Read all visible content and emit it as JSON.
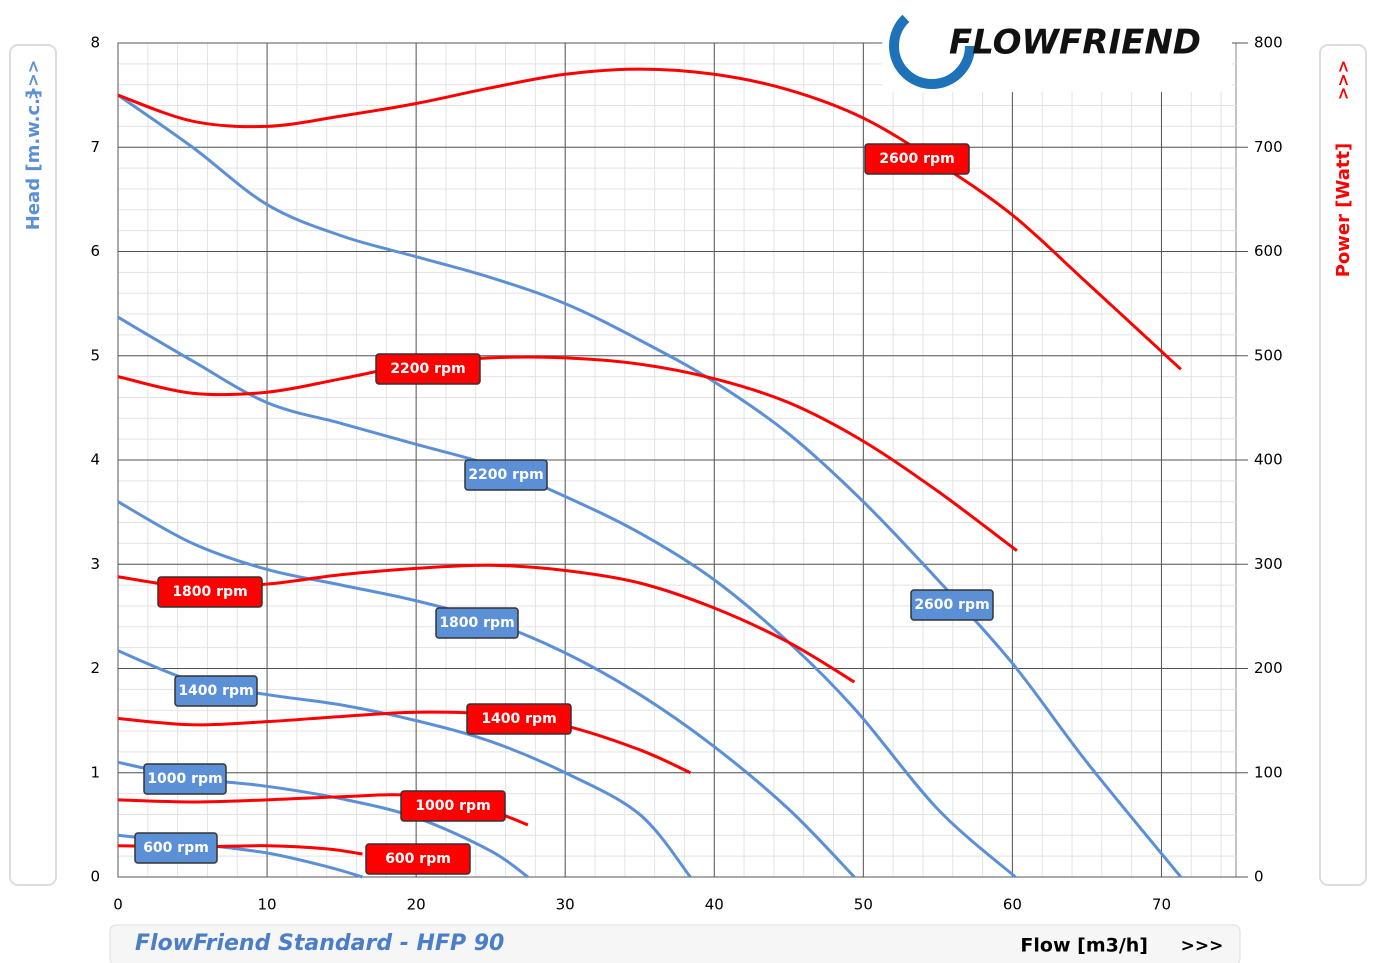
{
  "chart_data": {
    "type": "line",
    "logo": "FLOWFRIEND",
    "title": "FlowFriend Standard - HFP 90",
    "xlabel": "Flow [m3/h]",
    "xarrow": ">>>",
    "ylabel": "Head [m.w.c.]",
    "yarrow": ">>>",
    "y2label": "Power [Watt]",
    "y2arrow": ">>>",
    "xlim": [
      0,
      75
    ],
    "xticks": [
      0,
      10,
      20,
      30,
      40,
      50,
      60,
      70
    ],
    "xminor": 2,
    "ylim": [
      0,
      8
    ],
    "yticks": [
      0,
      1,
      2,
      3,
      4,
      5,
      6,
      7,
      8
    ],
    "yminor": 0.2,
    "y2lim": [
      0,
      800
    ],
    "y2ticks": [
      0,
      100,
      200,
      300,
      400,
      500,
      600,
      700,
      800
    ],
    "grid": true,
    "series": [
      {
        "name": "2600 rpm",
        "color": "#5b8fd6",
        "axis": "y",
        "x": [
          0,
          5,
          10,
          15,
          20,
          25,
          30,
          35,
          40,
          45,
          50,
          55,
          60,
          65,
          71.3
        ],
        "values": [
          7.5,
          7.0,
          6.45,
          6.15,
          5.95,
          5.75,
          5.5,
          5.15,
          4.75,
          4.25,
          3.6,
          2.85,
          2.05,
          1.1,
          0
        ]
      },
      {
        "name": "2200 rpm",
        "color": "#5b8fd6",
        "axis": "y",
        "x": [
          0,
          5,
          10,
          15,
          20,
          25,
          30,
          35,
          40,
          45,
          49.5,
          55,
          60.2
        ],
        "values": [
          5.37,
          4.95,
          4.55,
          4.35,
          4.15,
          3.95,
          3.65,
          3.3,
          2.85,
          2.25,
          1.6,
          0.65,
          0
        ]
      },
      {
        "name": "1800 rpm",
        "color": "#5b8fd6",
        "axis": "y",
        "x": [
          0,
          5,
          10,
          15,
          20,
          25,
          30,
          35,
          40,
          45,
          49.4
        ],
        "values": [
          3.6,
          3.2,
          2.95,
          2.8,
          2.65,
          2.45,
          2.15,
          1.75,
          1.25,
          0.65,
          0
        ]
      },
      {
        "name": "1400 rpm",
        "color": "#5b8fd6",
        "axis": "y",
        "x": [
          0,
          5,
          10,
          15,
          20,
          25,
          30,
          35,
          38.4
        ],
        "values": [
          2.17,
          1.88,
          1.75,
          1.65,
          1.5,
          1.3,
          1.0,
          0.6,
          0
        ]
      },
      {
        "name": "1000 rpm",
        "color": "#5b8fd6",
        "axis": "y",
        "x": [
          0,
          5,
          10,
          15,
          20,
          25,
          27.5
        ],
        "values": [
          1.1,
          0.95,
          0.87,
          0.75,
          0.57,
          0.25,
          0
        ]
      },
      {
        "name": "600 rpm",
        "color": "#5b8fd6",
        "axis": "y",
        "x": [
          0,
          5,
          10,
          14,
          16.4
        ],
        "values": [
          0.4,
          0.32,
          0.23,
          0.1,
          0
        ]
      },
      {
        "name": "2600 rpm",
        "color": "#ff0000",
        "axis": "y2",
        "x": [
          0,
          5,
          10,
          15,
          20,
          25,
          30,
          35,
          40,
          45,
          50,
          55,
          60,
          65,
          71.3
        ],
        "values": [
          750,
          725,
          720,
          730,
          742,
          757,
          770,
          775,
          770,
          755,
          728,
          685,
          635,
          570,
          487
        ]
      },
      {
        "name": "2200 rpm",
        "color": "#ff0000",
        "axis": "y2",
        "x": [
          0,
          5,
          10,
          15,
          20,
          25,
          30,
          35,
          40,
          45,
          50,
          55,
          60.3
        ],
        "values": [
          480,
          464,
          465,
          478,
          492,
          498,
          498,
          492,
          478,
          455,
          418,
          370,
          313
        ]
      },
      {
        "name": "1800 rpm",
        "color": "#ff0000",
        "axis": "y2",
        "x": [
          0,
          5,
          10,
          15,
          20,
          25,
          30,
          35,
          40,
          45,
          49.4
        ],
        "values": [
          288,
          278,
          281,
          290,
          296,
          299,
          294,
          282,
          258,
          225,
          187
        ]
      },
      {
        "name": "1400 rpm",
        "color": "#ff0000",
        "axis": "y2",
        "x": [
          0,
          5,
          10,
          15,
          20,
          25,
          30,
          35,
          38.4
        ],
        "values": [
          152,
          146,
          149,
          154,
          158,
          156,
          145,
          122,
          100
        ]
      },
      {
        "name": "1000 rpm",
        "color": "#ff0000",
        "axis": "y2",
        "x": [
          0,
          5,
          10,
          15,
          20,
          25,
          27.5
        ],
        "values": [
          74,
          72,
          74,
          77,
          78,
          63,
          50
        ]
      },
      {
        "name": "600 rpm",
        "color": "#ff0000",
        "axis": "y2",
        "x": [
          0,
          5,
          10,
          14,
          16.4
        ],
        "values": [
          30,
          29,
          30,
          27,
          22
        ]
      }
    ]
  }
}
